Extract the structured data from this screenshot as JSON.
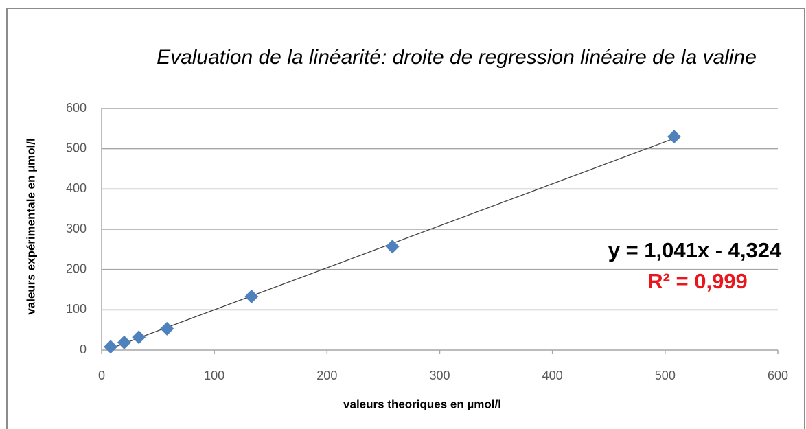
{
  "chart_data": {
    "type": "scatter",
    "title": "Evaluation de la linéarité: droite de regression linéaire de la valine",
    "x_label": "valeurs theoriques en µmol/l",
    "y_label": "valeurs expérimentale en µmol/l",
    "annotations": [
      "y = 1,041x - 4,324",
      "R² = 0,999"
    ],
    "series": [
      {
        "color": "#4f81bd",
        "x": [
          8,
          20,
          33,
          58,
          133,
          258,
          508
        ],
        "values": [
          8,
          19,
          32,
          53,
          133,
          257,
          530
        ]
      }
    ],
    "trendline": true,
    "xlim": [
      0,
      600
    ],
    "xticks": [
      0,
      100,
      200,
      300,
      400,
      500,
      600
    ],
    "ylim": [
      0,
      600
    ],
    "yticks": [
      0,
      100,
      200,
      300,
      400,
      500,
      600
    ],
    "grid": true
  }
}
